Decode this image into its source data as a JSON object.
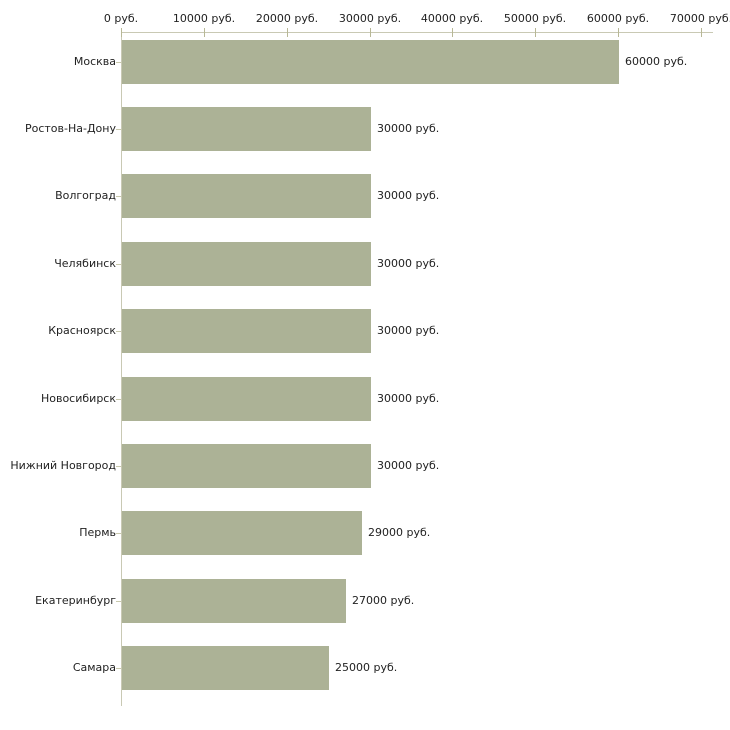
{
  "chart_data": {
    "type": "bar",
    "orientation": "horizontal",
    "title": "",
    "xlabel": "",
    "ylabel": "",
    "xlim": [
      0,
      70000
    ],
    "grid": false,
    "legend": "none",
    "categories": [
      "Москва",
      "Ростов-На-Дону",
      "Волгоград",
      "Челябинск",
      "Красноярск",
      "Новосибирск",
      "Нижний Новгород",
      "Пермь",
      "Екатеринбург",
      "Самара"
    ],
    "values": [
      60000,
      30000,
      30000,
      30000,
      30000,
      30000,
      30000,
      29000,
      27000,
      25000
    ],
    "value_labels": [
      "60000 руб.",
      "30000 руб.",
      "30000 руб.",
      "30000 руб.",
      "30000 руб.",
      "30000 руб.",
      "30000 руб.",
      "29000 руб.",
      "27000 руб.",
      "25000 руб."
    ],
    "x_tick_values": [
      0,
      10000,
      20000,
      30000,
      40000,
      50000,
      60000,
      70000
    ],
    "x_tick_labels": [
      "0 руб.",
      "10000 руб.",
      "20000 руб.",
      "30000 руб.",
      "40000 руб.",
      "50000 руб.",
      "60000 руб.",
      "70000 руб."
    ]
  },
  "colors": {
    "bar": "#acb296",
    "axis_line": "#c9c9b4",
    "tick_mark": "#b8b896",
    "text": "#222222",
    "background": "#ffffff"
  }
}
